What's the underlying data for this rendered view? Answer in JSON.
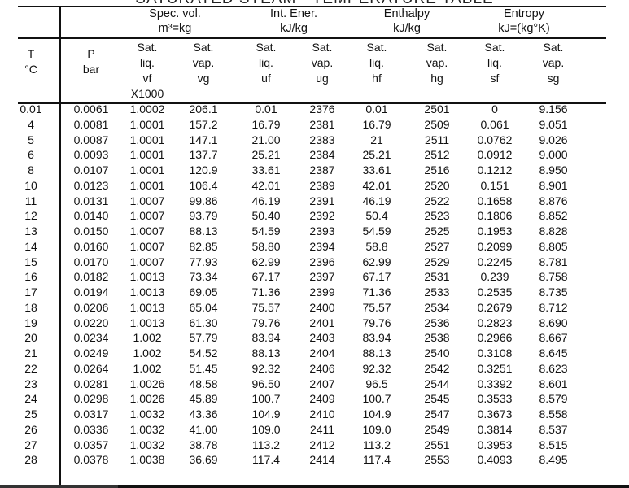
{
  "title": "SATURATED STEAM - TEMPERATURE TABLE",
  "groups": [
    {
      "label": "Spec. vol.",
      "unit": "m³=kg"
    },
    {
      "label": "Int. Ener.",
      "unit": "kJ/kg"
    },
    {
      "label": "Enthalpy",
      "unit": "kJ/kg"
    },
    {
      "label": "Entropy",
      "unit": "kJ=(kg°K)"
    }
  ],
  "columns": [
    "T\n°C",
    "P\nbar",
    "Sat.\nliq.\nvf\nX1000",
    "Sat.\nvap.\nvg",
    "Sat.\nliq.\nuf",
    "Sat.\nvap.\nug",
    "Sat.\nliq.\nhf",
    "Sat.\nvap.\nhg",
    "Sat.\nliq.\nsf",
    "Sat.\nvap.\nsg"
  ],
  "rows": [
    [
      "0.01",
      "0.0061",
      "1.0002",
      "206.1",
      "0.01",
      "2376",
      "0.01",
      "2501",
      "0",
      "9.156"
    ],
    [
      "4",
      "0.0081",
      "1.0001",
      "157.2",
      "16.79",
      "2381",
      "16.79",
      "2509",
      "0.061",
      "9.051"
    ],
    [
      "5",
      "0.0087",
      "1.0001",
      "147.1",
      "21.00",
      "2383",
      "21",
      "2511",
      "0.0762",
      "9.026"
    ],
    [
      "6",
      "0.0093",
      "1.0001",
      "137.7",
      "25.21",
      "2384",
      "25.21",
      "2512",
      "0.0912",
      "9.000"
    ],
    [
      "8",
      "0.0107",
      "1.0001",
      "120.9",
      "33.61",
      "2387",
      "33.61",
      "2516",
      "0.1212",
      "8.950"
    ],
    [
      "10",
      "0.0123",
      "1.0001",
      "106.4",
      "42.01",
      "2389",
      "42.01",
      "2520",
      "0.151",
      "8.901"
    ],
    [
      "11",
      "0.0131",
      "1.0007",
      "99.86",
      "46.19",
      "2391",
      "46.19",
      "2522",
      "0.1658",
      "8.876"
    ],
    [
      "12",
      "0.0140",
      "1.0007",
      "93.79",
      "50.40",
      "2392",
      "50.4",
      "2523",
      "0.1806",
      "8.852"
    ],
    [
      "13",
      "0.0150",
      "1.0007",
      "88.13",
      "54.59",
      "2393",
      "54.59",
      "2525",
      "0.1953",
      "8.828"
    ],
    [
      "14",
      "0.0160",
      "1.0007",
      "82.85",
      "58.80",
      "2394",
      "58.8",
      "2527",
      "0.2099",
      "8.805"
    ],
    [
      "15",
      "0.0170",
      "1.0007",
      "77.93",
      "62.99",
      "2396",
      "62.99",
      "2529",
      "0.2245",
      "8.781"
    ],
    [
      "16",
      "0.0182",
      "1.0013",
      "73.34",
      "67.17",
      "2397",
      "67.17",
      "2531",
      "0.239",
      "8.758"
    ],
    [
      "17",
      "0.0194",
      "1.0013",
      "69.05",
      "71.36",
      "2399",
      "71.36",
      "2533",
      "0.2535",
      "8.735"
    ],
    [
      "18",
      "0.0206",
      "1.0013",
      "65.04",
      "75.57",
      "2400",
      "75.57",
      "2534",
      "0.2679",
      "8.712"
    ],
    [
      "19",
      "0.0220",
      "1.0013",
      "61.30",
      "79.76",
      "2401",
      "79.76",
      "2536",
      "0.2823",
      "8.690"
    ],
    [
      "20",
      "0.0234",
      "1.002",
      "57.79",
      "83.94",
      "2403",
      "83.94",
      "2538",
      "0.2966",
      "8.667"
    ],
    [
      "21",
      "0.0249",
      "1.002",
      "54.52",
      "88.13",
      "2404",
      "88.13",
      "2540",
      "0.3108",
      "8.645"
    ],
    [
      "22",
      "0.0264",
      "1.002",
      "51.45",
      "92.32",
      "2406",
      "92.32",
      "2542",
      "0.3251",
      "8.623"
    ],
    [
      "23",
      "0.0281",
      "1.0026",
      "48.58",
      "96.50",
      "2407",
      "96.5",
      "2544",
      "0.3392",
      "8.601"
    ],
    [
      "24",
      "0.0298",
      "1.0026",
      "45.89",
      "100.7",
      "2409",
      "100.7",
      "2545",
      "0.3533",
      "8.579"
    ],
    [
      "25",
      "0.0317",
      "1.0032",
      "43.36",
      "104.9",
      "2410",
      "104.9",
      "2547",
      "0.3673",
      "8.558"
    ],
    [
      "26",
      "0.0336",
      "1.0032",
      "41.00",
      "109.0",
      "2411",
      "109.0",
      "2549",
      "0.3814",
      "8.537"
    ],
    [
      "27",
      "0.0357",
      "1.0032",
      "38.78",
      "113.2",
      "2412",
      "113.2",
      "2551",
      "0.3953",
      "8.515"
    ],
    [
      "28",
      "0.0378",
      "1.0038",
      "36.69",
      "117.4",
      "2414",
      "117.4",
      "2553",
      "0.4093",
      "8.495"
    ]
  ]
}
